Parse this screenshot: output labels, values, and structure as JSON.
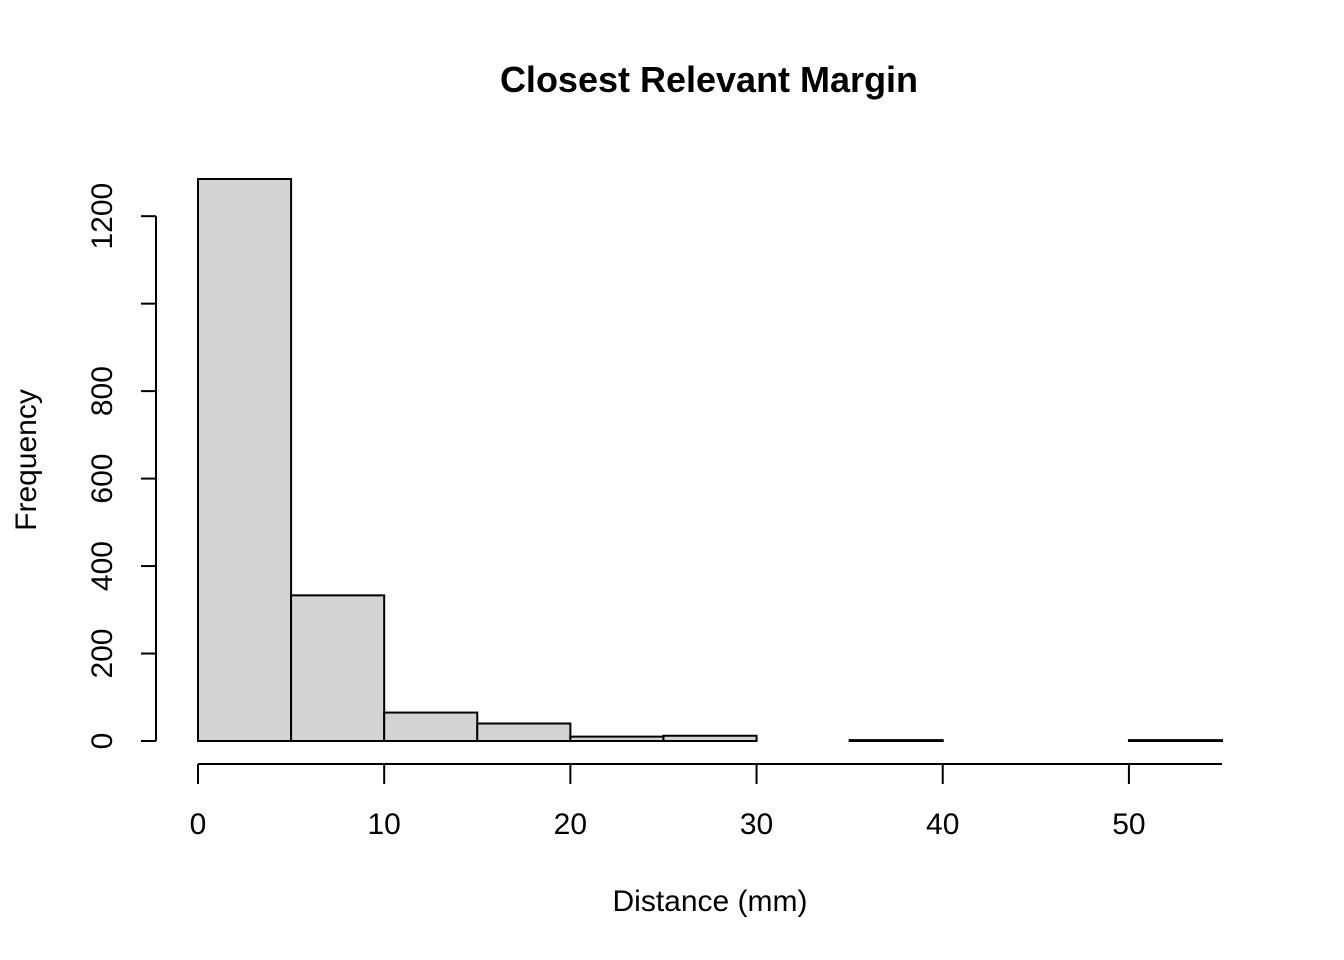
{
  "chart_data": {
    "type": "bar",
    "subtype": "histogram",
    "title": "Closest Relevant Margin",
    "xlabel": "Distance (mm)",
    "ylabel": "Frequency",
    "bins": [
      {
        "start": 0,
        "end": 5,
        "count": 1285
      },
      {
        "start": 5,
        "end": 10,
        "count": 333
      },
      {
        "start": 10,
        "end": 15,
        "count": 65
      },
      {
        "start": 15,
        "end": 20,
        "count": 40
      },
      {
        "start": 20,
        "end": 25,
        "count": 10
      },
      {
        "start": 25,
        "end": 30,
        "count": 12
      },
      {
        "start": 30,
        "end": 35,
        "count": 0
      },
      {
        "start": 35,
        "end": 40,
        "count": 2
      },
      {
        "start": 40,
        "end": 45,
        "count": 0
      },
      {
        "start": 45,
        "end": 50,
        "count": 0
      },
      {
        "start": 50,
        "end": 55,
        "count": 2
      }
    ],
    "xticks": [
      0,
      10,
      20,
      30,
      40,
      50
    ],
    "yticks": [
      0,
      200,
      400,
      600,
      800,
      1000,
      1200
    ],
    "ytick_labels": [
      "0",
      "200",
      "400",
      "600",
      "800",
      "",
      "1200"
    ],
    "xlim": [
      0,
      55
    ],
    "ylim": [
      0,
      1285
    ],
    "grid": false,
    "colors": {
      "bar_fill": "#d3d3d3",
      "bar_stroke": "#000000"
    }
  }
}
